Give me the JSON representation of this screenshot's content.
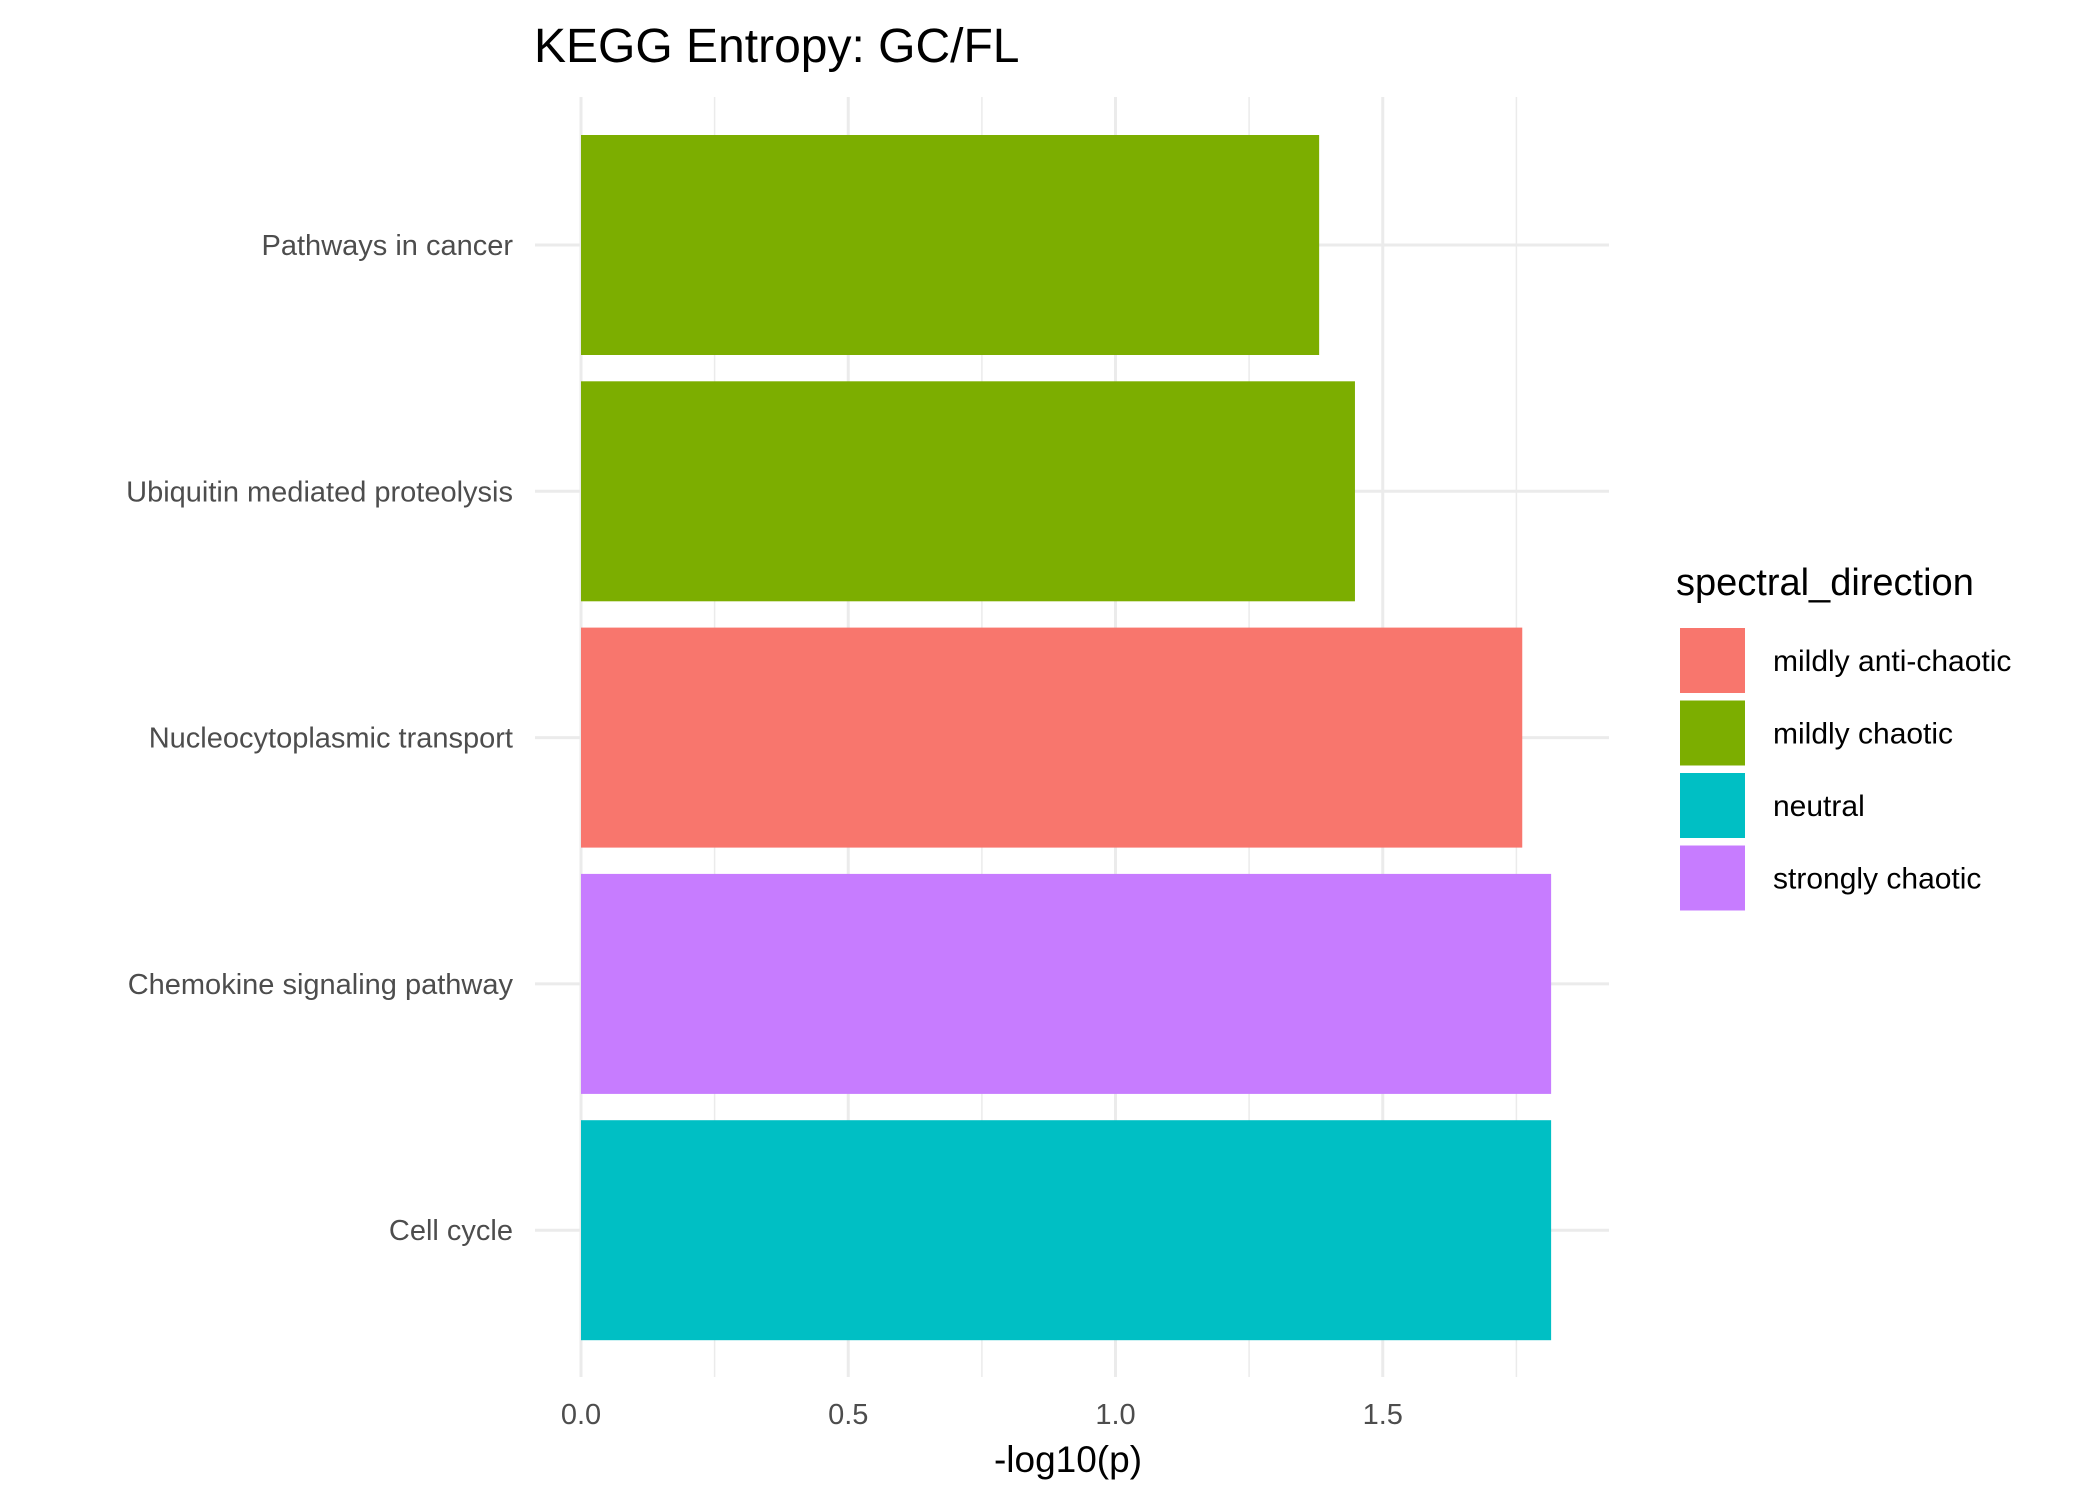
{
  "chart_data": {
    "type": "bar",
    "orientation": "horizontal",
    "title": "KEGG Entropy: GC/FL",
    "xlabel": "-log10(p)",
    "ylabel": "",
    "xlim": [
      0,
      1.9
    ],
    "x_ticks": [
      0.0,
      0.5,
      1.0,
      1.5
    ],
    "x_tick_labels": [
      "0.0",
      "0.5",
      "1.0",
      "1.5"
    ],
    "grid": true,
    "categories": [
      "Pathways in cancer",
      "Ubiquitin mediated proteolysis",
      "Nucleocytoplasmic transport",
      "Chemokine signaling pathway",
      "Cell cycle"
    ],
    "values": [
      1.381,
      1.448,
      1.761,
      1.815,
      1.815
    ],
    "groups": [
      "mildly chaotic",
      "mildly chaotic",
      "mildly anti-chaotic",
      "strongly chaotic",
      "neutral"
    ],
    "legend": {
      "title": "spectral_direction",
      "placement": "right",
      "entries": [
        {
          "label": "mildly anti-chaotic",
          "color": "#F8766D"
        },
        {
          "label": "mildly chaotic",
          "color": "#7CAE00"
        },
        {
          "label": "neutral",
          "color": "#00BFC4"
        },
        {
          "label": "strongly chaotic",
          "color": "#C77CFF"
        }
      ]
    }
  }
}
